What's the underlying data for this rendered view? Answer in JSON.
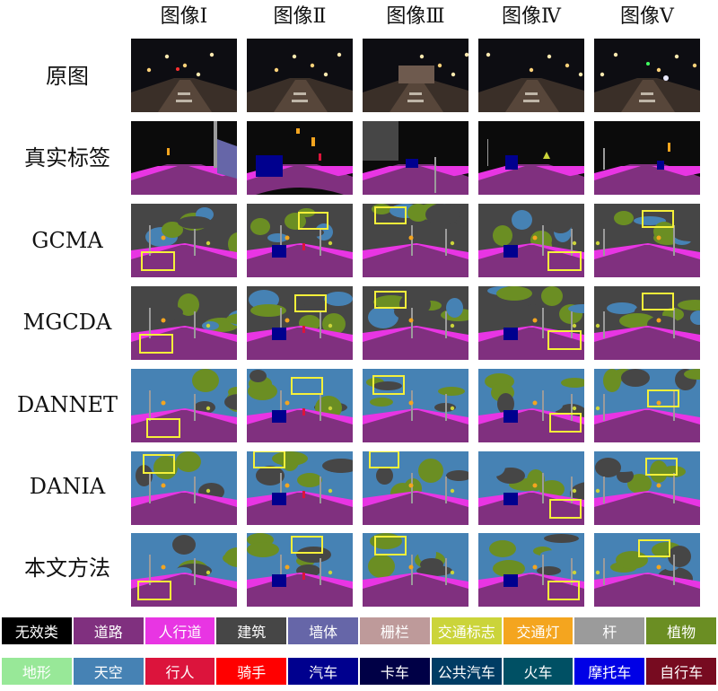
{
  "columns": [
    "图像Ⅰ",
    "图像Ⅱ",
    "图像Ⅲ",
    "图像Ⅳ",
    "图像Ⅴ"
  ],
  "rows": [
    "原图",
    "真实标签",
    "GCMA",
    "MGCDA",
    "DANNET",
    "DANIA",
    "本文方法"
  ],
  "legend": [
    {
      "label": "无效类",
      "color": "#000000"
    },
    {
      "label": "道路",
      "color": "#80307f"
    },
    {
      "label": "人行道",
      "color": "#e835e3"
    },
    {
      "label": "建筑",
      "color": "#464646"
    },
    {
      "label": "墙体",
      "color": "#6666a8"
    },
    {
      "label": "栅栏",
      "color": "#be9a9a"
    },
    {
      "label": "交通标志",
      "color": "#cbd43a"
    },
    {
      "label": "交通灯",
      "color": "#f4a51f"
    },
    {
      "label": "杆",
      "color": "#9b9b9b"
    },
    {
      "label": "植物",
      "color": "#6b8e23"
    },
    {
      "label": "地形",
      "color": "#98e898"
    },
    {
      "label": "天空",
      "color": "#4682b4"
    },
    {
      "label": "行人",
      "color": "#dc143c"
    },
    {
      "label": "骑手",
      "color": "#ff0000"
    },
    {
      "label": "汽车",
      "color": "#00008e"
    },
    {
      "label": "卡车",
      "color": "#000046"
    },
    {
      "label": "公共汽车",
      "color": "#003c64"
    },
    {
      "label": "火车",
      "color": "#005064"
    },
    {
      "label": "摩托车",
      "color": "#0000e6"
    },
    {
      "label": "自行车",
      "color": "#770b20"
    }
  ]
}
